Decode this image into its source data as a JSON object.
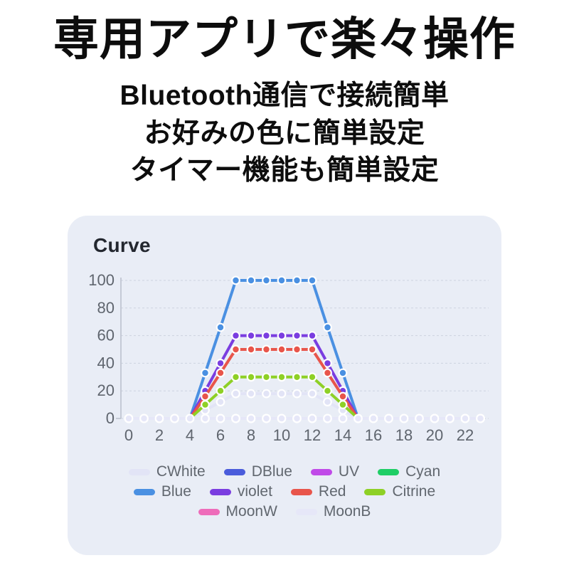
{
  "page": {
    "background": "#ffffff",
    "text_color": "#0d0d0d"
  },
  "header": {
    "title": "専用アプリで楽々操作",
    "subtitle_lines": [
      "Bluetooth通信で接続簡単",
      "お好みの色に簡単設定",
      "タイマー機能も簡単設定"
    ]
  },
  "card": {
    "title": "Curve",
    "background": "#e9edf6",
    "grid_color": "#cdd3e0",
    "axis_color": "#b9bfcc",
    "tick_label_color": "#5f656e",
    "legend_label_color": "#61676f"
  },
  "chart_data": {
    "type": "line",
    "title": "Curve",
    "x": [
      0,
      1,
      2,
      3,
      4,
      5,
      6,
      7,
      8,
      9,
      10,
      11,
      12,
      13,
      14,
      15,
      16,
      17,
      18,
      19,
      20,
      21,
      22,
      23
    ],
    "xticks": [
      0,
      2,
      4,
      6,
      8,
      10,
      12,
      14,
      16,
      18,
      20,
      22
    ],
    "yticks": [
      0,
      20,
      40,
      60,
      80,
      100
    ],
    "xlim": [
      0,
      23
    ],
    "ylim": [
      0,
      100
    ],
    "xlabel": "",
    "ylabel": "",
    "grid": "horizontal-dashed",
    "point_style": "filled-circle-white-border",
    "legend_position": "bottom",
    "legend_rows": [
      [
        "CWhite",
        "DBlue",
        "UV",
        "Cyan"
      ],
      [
        "Blue",
        "violet",
        "Red",
        "Citrine"
      ],
      [
        "MoonW",
        "MoonB"
      ]
    ],
    "draw_order": [
      "DBlue",
      "UV",
      "Cyan",
      "MoonW",
      "CWhite",
      "Blue",
      "violet",
      "Red",
      "Citrine",
      "MoonB"
    ],
    "series": [
      {
        "name": "CWhite",
        "color": "#e2e4f6",
        "values": [
          0,
          0,
          0,
          0,
          0,
          6,
          12,
          18,
          18,
          18,
          18,
          18,
          18,
          12,
          6,
          0,
          0,
          0,
          0,
          0,
          0,
          0,
          0,
          0
        ]
      },
      {
        "name": "DBlue",
        "color": "#4a5cdb",
        "values": [
          0,
          0,
          0,
          0,
          0,
          0,
          0,
          0,
          0,
          0,
          0,
          0,
          0,
          0,
          0,
          0,
          0,
          0,
          0,
          0,
          0,
          0,
          0,
          0
        ]
      },
      {
        "name": "UV",
        "color": "#c04ae8",
        "values": [
          0,
          0,
          0,
          0,
          0,
          0,
          0,
          0,
          0,
          0,
          0,
          0,
          0,
          0,
          0,
          0,
          0,
          0,
          0,
          0,
          0,
          0,
          0,
          0
        ]
      },
      {
        "name": "Cyan",
        "color": "#1fce66",
        "values": [
          0,
          0,
          0,
          0,
          0,
          0,
          0,
          0,
          0,
          0,
          0,
          0,
          0,
          0,
          0,
          0,
          0,
          0,
          0,
          0,
          0,
          0,
          0,
          0
        ]
      },
      {
        "name": "Blue",
        "color": "#4a90e2",
        "values": [
          0,
          0,
          0,
          0,
          0,
          33,
          66,
          100,
          100,
          100,
          100,
          100,
          100,
          66,
          33,
          0,
          0,
          0,
          0,
          0,
          0,
          0,
          0,
          0
        ]
      },
      {
        "name": "violet",
        "color": "#7a3de0",
        "values": [
          0,
          0,
          0,
          0,
          0,
          20,
          40,
          60,
          60,
          60,
          60,
          60,
          60,
          40,
          20,
          0,
          0,
          0,
          0,
          0,
          0,
          0,
          0,
          0
        ]
      },
      {
        "name": "Red",
        "color": "#e8554b",
        "values": [
          0,
          0,
          0,
          0,
          0,
          16,
          33,
          50,
          50,
          50,
          50,
          50,
          50,
          33,
          16,
          0,
          0,
          0,
          0,
          0,
          0,
          0,
          0,
          0
        ]
      },
      {
        "name": "Citrine",
        "color": "#8ed026",
        "values": [
          0,
          0,
          0,
          0,
          0,
          10,
          20,
          30,
          30,
          30,
          30,
          30,
          30,
          20,
          10,
          0,
          0,
          0,
          0,
          0,
          0,
          0,
          0,
          0
        ]
      },
      {
        "name": "MoonW",
        "color": "#ee6cba",
        "values": [
          0,
          0,
          0,
          0,
          0,
          0,
          0,
          0,
          0,
          0,
          0,
          0,
          0,
          0,
          0,
          0,
          0,
          0,
          0,
          0,
          0,
          0,
          0,
          0
        ]
      },
      {
        "name": "MoonB",
        "color": "#e6e7f8",
        "values": [
          0,
          0,
          0,
          0,
          0,
          0,
          0,
          0,
          0,
          0,
          0,
          0,
          0,
          0,
          0,
          0,
          0,
          0,
          0,
          0,
          0,
          0,
          0,
          0
        ]
      }
    ]
  }
}
